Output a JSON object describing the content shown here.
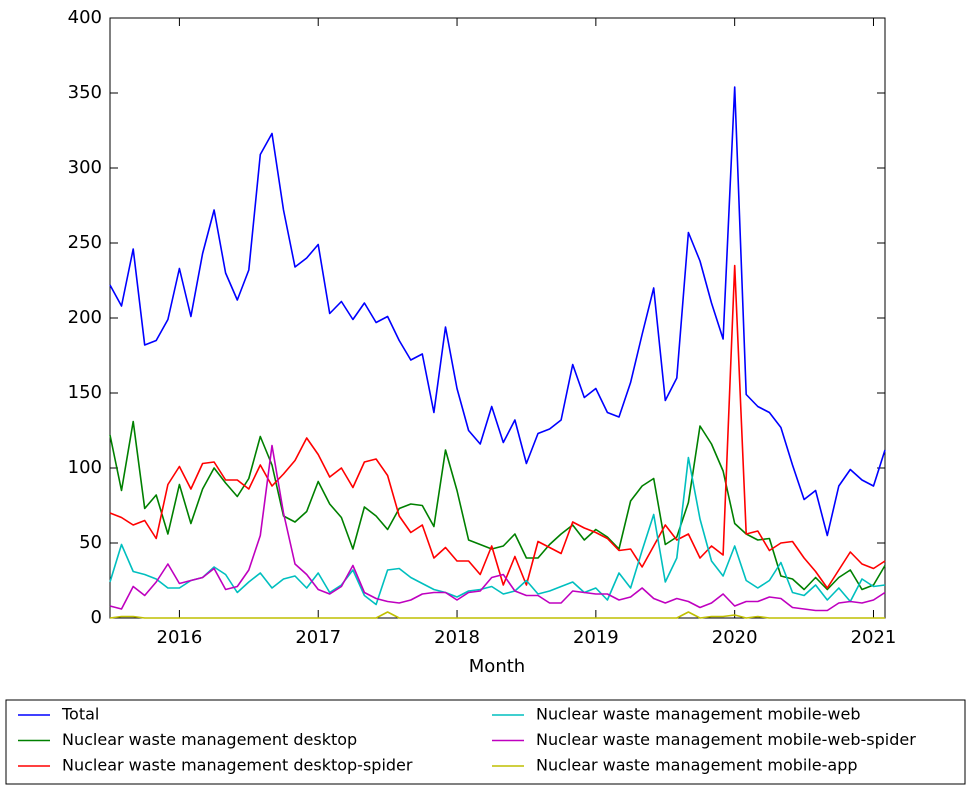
{
  "chart_data": {
    "type": "line",
    "xlabel": "Month",
    "x": [
      2015.5,
      2015.583,
      2015.667,
      2015.75,
      2015.833,
      2015.917,
      2016,
      2016.083,
      2016.167,
      2016.25,
      2016.333,
      2016.417,
      2016.5,
      2016.583,
      2016.667,
      2016.75,
      2016.833,
      2016.917,
      2017,
      2017.083,
      2017.167,
      2017.25,
      2017.333,
      2017.417,
      2017.5,
      2017.583,
      2017.667,
      2017.75,
      2017.833,
      2017.917,
      2018,
      2018.083,
      2018.167,
      2018.25,
      2018.333,
      2018.417,
      2018.5,
      2018.583,
      2018.667,
      2018.75,
      2018.833,
      2018.917,
      2019,
      2019.083,
      2019.167,
      2019.25,
      2019.333,
      2019.417,
      2019.5,
      2019.583,
      2019.667,
      2019.75,
      2019.833,
      2019.917,
      2020,
      2020.083,
      2020.167,
      2020.25,
      2020.333,
      2020.417,
      2020.5,
      2020.583,
      2020.667,
      2020.75,
      2020.833,
      2020.917,
      2021,
      2021.083
    ],
    "series": [
      {
        "name": "Total",
        "color": "#0000ff",
        "values": [
          222,
          208,
          246,
          182,
          185,
          199,
          233,
          201,
          243,
          272,
          230,
          212,
          232,
          309,
          323,
          272,
          234,
          240,
          249,
          203,
          211,
          199,
          210,
          197,
          201,
          185,
          172,
          176,
          137,
          194,
          153,
          125,
          116,
          141,
          117,
          132,
          103,
          123,
          126,
          132,
          169,
          147,
          153,
          137,
          134,
          157,
          189,
          220,
          145,
          160,
          257,
          238,
          210,
          186,
          354,
          149,
          141,
          137,
          127,
          102,
          79,
          85,
          55,
          88,
          99,
          92,
          88,
          112
        ]
      },
      {
        "name": "Nuclear waste management desktop",
        "color": "#008000",
        "values": [
          122,
          85,
          131,
          73,
          82,
          56,
          89,
          63,
          86,
          100,
          90,
          81,
          93,
          121,
          102,
          68,
          64,
          71,
          91,
          76,
          67,
          46,
          74,
          68,
          59,
          73,
          76,
          75,
          61,
          112,
          85,
          52,
          49,
          46,
          48,
          56,
          40,
          40,
          49,
          56,
          62,
          52,
          59,
          54,
          46,
          78,
          88,
          93,
          49,
          54,
          77,
          128,
          116,
          98,
          63,
          56,
          52,
          53,
          28,
          26,
          19,
          27,
          19,
          27,
          32,
          19,
          22,
          35
        ]
      },
      {
        "name": "Nuclear waste management desktop-spider",
        "color": "#ff0000",
        "values": [
          70,
          67,
          62,
          65,
          53,
          89,
          101,
          86,
          103,
          104,
          92,
          92,
          86,
          102,
          88,
          96,
          105,
          120,
          109,
          94,
          100,
          87,
          104,
          106,
          95,
          68,
          57,
          62,
          40,
          47,
          38,
          38,
          29,
          48,
          22,
          41,
          22,
          51,
          47,
          43,
          64,
          60,
          57,
          53,
          45,
          46,
          34,
          48,
          62,
          52,
          56,
          40,
          48,
          42,
          235,
          56,
          58,
          45,
          50,
          51,
          40,
          31,
          20,
          32,
          44,
          36,
          33,
          38
        ]
      },
      {
        "name": "Nuclear waste management mobile-web",
        "color": "#00bfbf",
        "values": [
          24,
          49,
          31,
          29,
          26,
          20,
          20,
          25,
          27,
          34,
          29,
          17,
          24,
          30,
          20,
          26,
          28,
          20,
          30,
          17,
          22,
          32,
          15,
          9,
          32,
          33,
          27,
          23,
          19,
          17,
          14,
          18,
          19,
          21,
          16,
          18,
          25,
          16,
          18,
          21,
          24,
          17,
          20,
          12,
          30,
          20,
          45,
          69,
          24,
          40,
          107,
          66,
          38,
          28,
          48,
          25,
          20,
          25,
          37,
          17,
          15,
          22,
          12,
          20,
          11,
          26,
          21,
          22
        ]
      },
      {
        "name": "Nuclear waste management mobile-web-spider",
        "color": "#bf00bf",
        "values": [
          8,
          6,
          21,
          15,
          24,
          36,
          23,
          25,
          27,
          33,
          19,
          21,
          32,
          55,
          115,
          70,
          36,
          29,
          19,
          16,
          21,
          35,
          17,
          13,
          11,
          10,
          12,
          16,
          17,
          17,
          12,
          17,
          18,
          27,
          29,
          18,
          15,
          15,
          10,
          10,
          18,
          17,
          16,
          16,
          12,
          14,
          20,
          13,
          10,
          13,
          11,
          7,
          10,
          16,
          8,
          11,
          11,
          14,
          13,
          7,
          6,
          5,
          5,
          10,
          11,
          10,
          12,
          17
        ]
      },
      {
        "name": "Nuclear waste management mobile-app",
        "color": "#bfbf00",
        "values": [
          0,
          1,
          1,
          0,
          0,
          0,
          0,
          0,
          0,
          0,
          0,
          0,
          0,
          0,
          0,
          0,
          0,
          0,
          0,
          0,
          0,
          0,
          0,
          0,
          4,
          0,
          0,
          0,
          0,
          0,
          0,
          0,
          0,
          0,
          0,
          0,
          0,
          0,
          0,
          0,
          0,
          0,
          0,
          0,
          0,
          0,
          0,
          0,
          0,
          0,
          4,
          0,
          1,
          1,
          2,
          0,
          1,
          0,
          0,
          0,
          0,
          0,
          0,
          0,
          0,
          0,
          0,
          0
        ]
      }
    ],
    "xlim": [
      2015.5,
      2021.083
    ],
    "xticks": [
      2016,
      2017,
      2018,
      2019,
      2020,
      2021
    ],
    "ylim": [
      0,
      400
    ],
    "yticks": [
      0,
      50,
      100,
      150,
      200,
      250,
      300,
      350,
      400
    ],
    "legend": "bottom"
  }
}
